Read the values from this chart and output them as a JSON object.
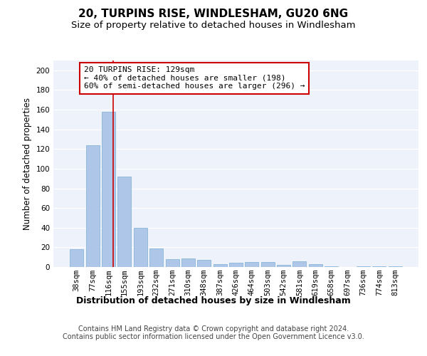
{
  "title": "20, TURPINS RISE, WINDLESHAM, GU20 6NG",
  "subtitle": "Size of property relative to detached houses in Windlesham",
  "xlabel": "Distribution of detached houses by size in Windlesham",
  "ylabel": "Number of detached properties",
  "categories": [
    "38sqm",
    "77sqm",
    "116sqm",
    "155sqm",
    "193sqm",
    "232sqm",
    "271sqm",
    "310sqm",
    "348sqm",
    "387sqm",
    "426sqm",
    "464sqm",
    "503sqm",
    "542sqm",
    "581sqm",
    "619sqm",
    "658sqm",
    "697sqm",
    "736sqm",
    "774sqm",
    "813sqm"
  ],
  "values": [
    18,
    124,
    158,
    92,
    40,
    19,
    8,
    9,
    7,
    3,
    4,
    5,
    5,
    2,
    6,
    3,
    1,
    0,
    1,
    1,
    1
  ],
  "bar_color": "#aec6e8",
  "bar_edge_color": "#7aafd4",
  "background_color": "#eef2fb",
  "grid_color": "#ffffff",
  "red_line_x": 2.3,
  "annotation_text": "20 TURPINS RISE: 129sqm\n← 40% of detached houses are smaller (198)\n60% of semi-detached houses are larger (296) →",
  "annotation_box_color": "#ffffff",
  "annotation_box_edge": "#cc0000",
  "footer_text": "Contains HM Land Registry data © Crown copyright and database right 2024.\nContains public sector information licensed under the Open Government Licence v3.0.",
  "ylim": [
    0,
    210
  ],
  "yticks": [
    0,
    20,
    40,
    60,
    80,
    100,
    120,
    140,
    160,
    180,
    200
  ],
  "title_fontsize": 11,
  "subtitle_fontsize": 9.5,
  "xlabel_fontsize": 9,
  "ylabel_fontsize": 8.5,
  "tick_fontsize": 7.5,
  "annotation_fontsize": 8,
  "footer_fontsize": 7
}
